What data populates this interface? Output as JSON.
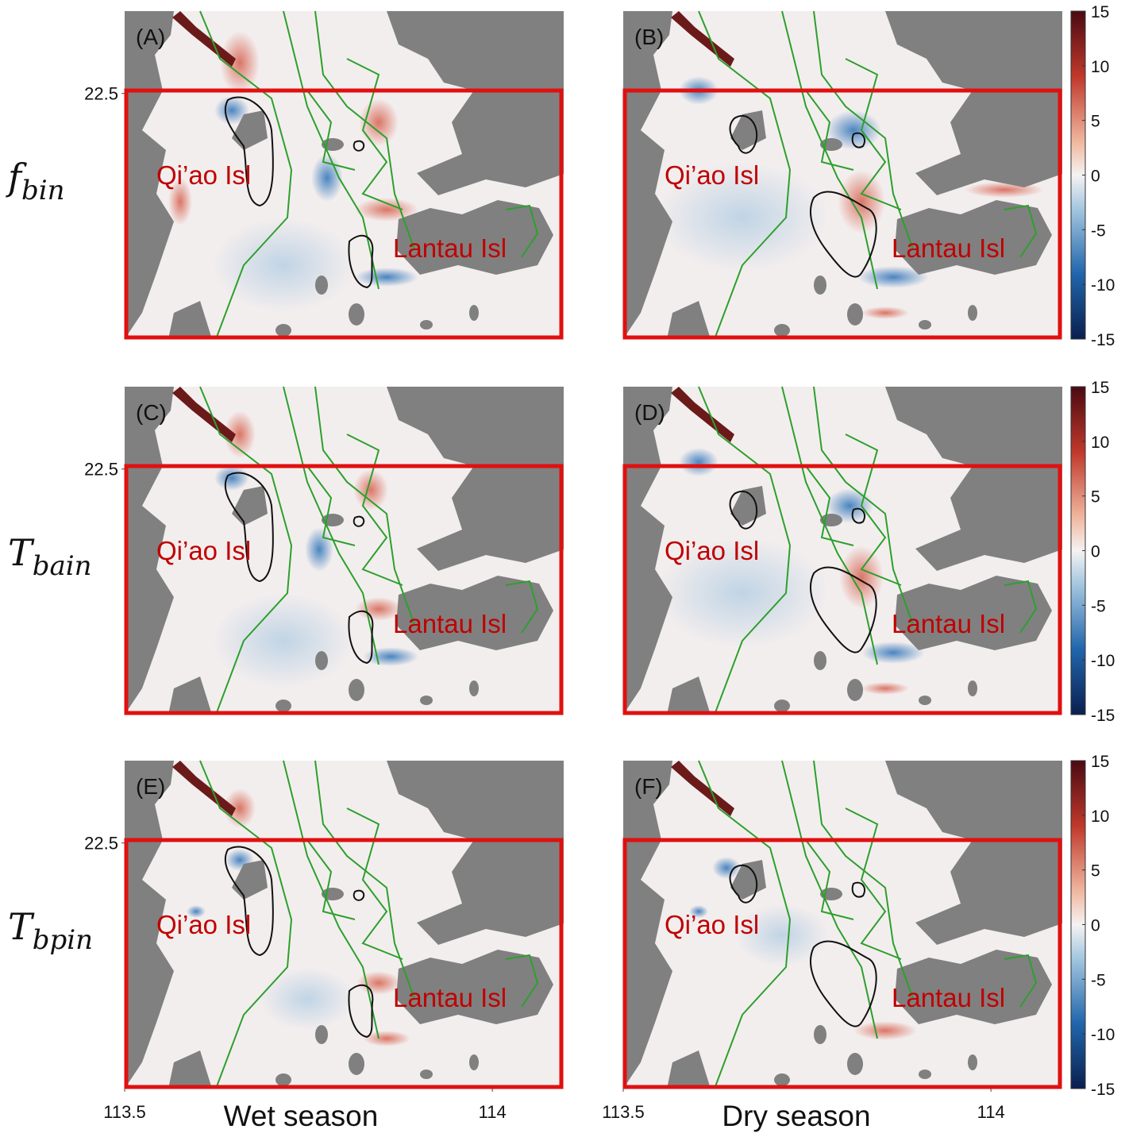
{
  "figure": {
    "row_labels": [
      {
        "symbol": "f",
        "subscript": "bin"
      },
      {
        "symbol": "T",
        "subscript": "bain"
      },
      {
        "symbol": "T",
        "subscript": "bpin"
      }
    ],
    "column_labels": [
      "Wet season",
      "Dry season"
    ],
    "panels": [
      {
        "label": "(A)",
        "islands": [
          "Qi’ao Isl",
          "Lantau Isl"
        ]
      },
      {
        "label": "(B)",
        "islands": [
          "Qi’ao Isl",
          "Lantau Isl"
        ]
      },
      {
        "label": "(C)",
        "islands": [
          "Qi’ao Isl",
          "Lantau Isl"
        ]
      },
      {
        "label": "(D)",
        "islands": [
          "Qi’ao Isl",
          "Lantau Isl"
        ]
      },
      {
        "label": "(E)",
        "islands": [
          "Qi’ao Isl",
          "Lantau Isl"
        ]
      },
      {
        "label": "(F)",
        "islands": [
          "Qi’ao Isl",
          "Lantau Isl"
        ]
      }
    ],
    "xlim": [
      113.5,
      114.097
    ],
    "ylim": [
      22.166,
      22.612
    ],
    "x_ticks": [
      113.5,
      114
    ],
    "y_ticks": [
      22.5
    ],
    "colorbar": {
      "lim": [
        -15,
        15
      ],
      "ticks": [
        15,
        10,
        5,
        0,
        -5,
        -10,
        -15
      ]
    }
  }
}
